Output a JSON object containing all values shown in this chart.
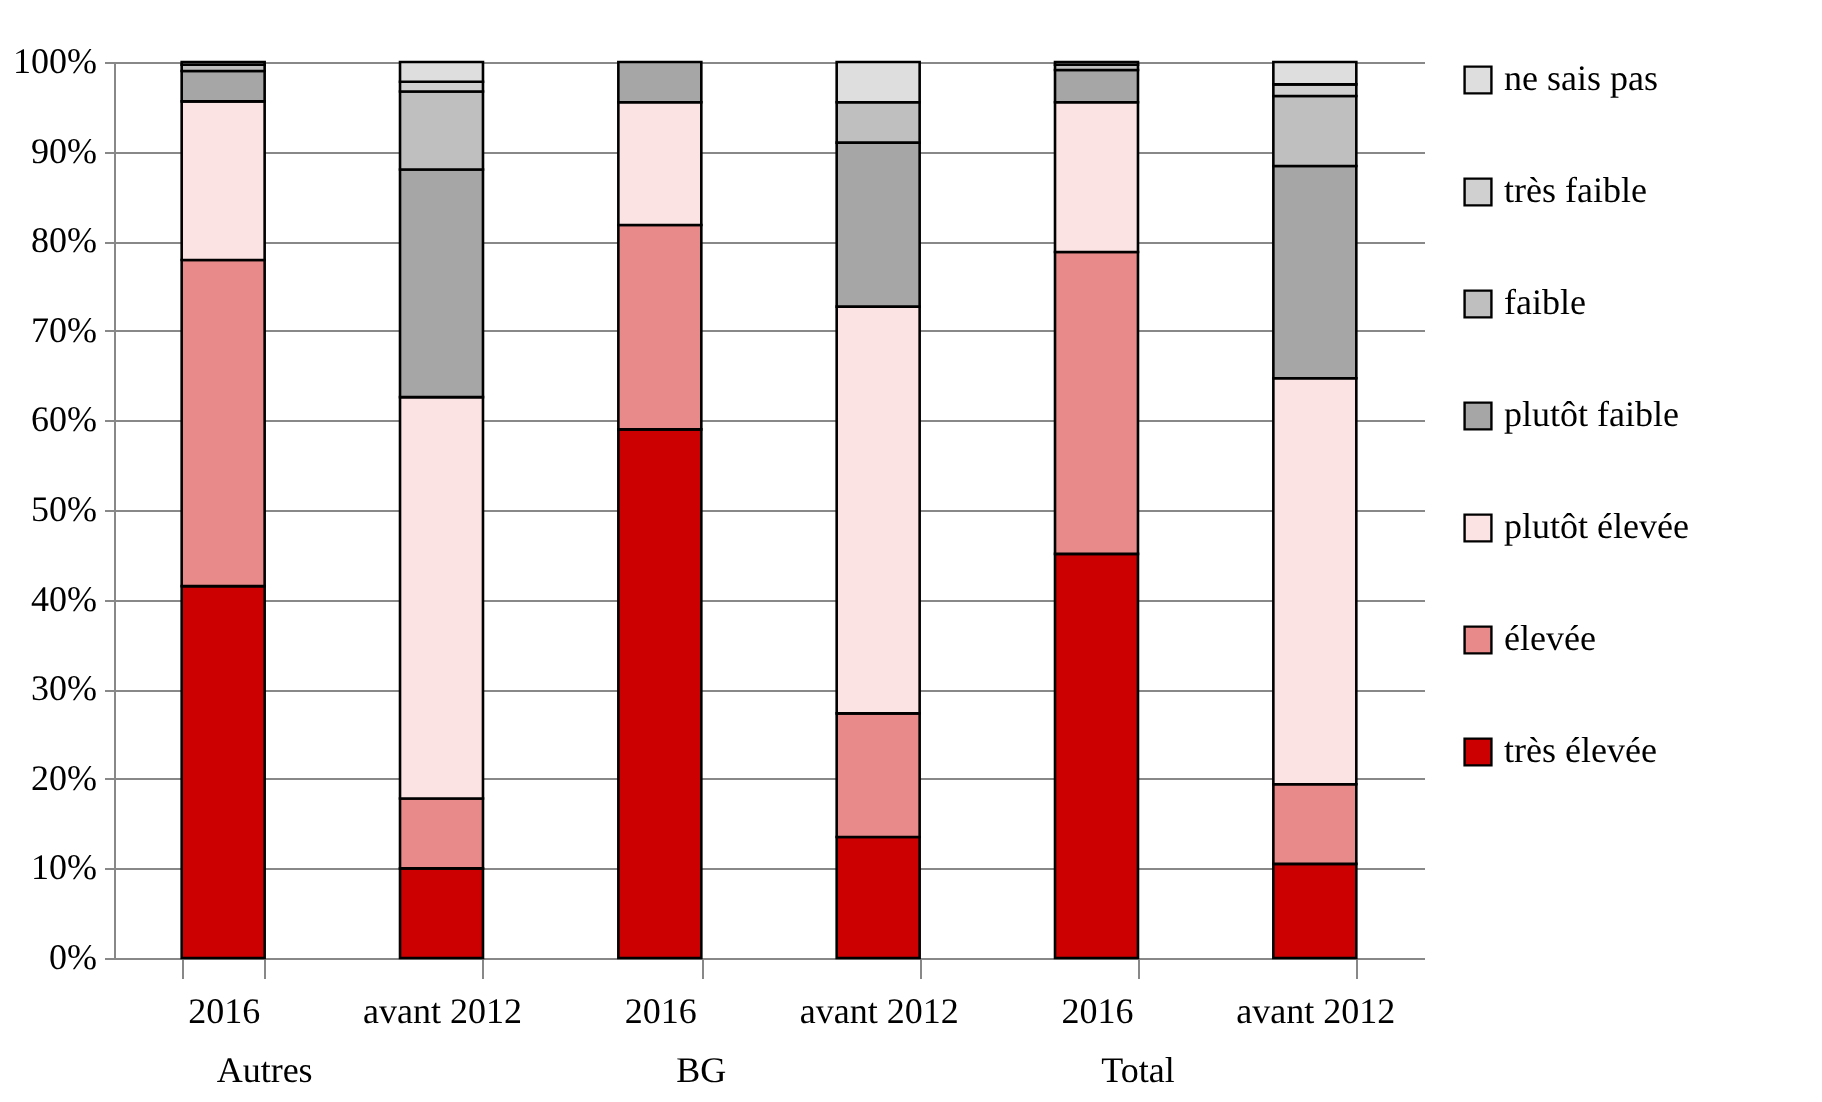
{
  "chart_data": {
    "type": "bar",
    "stacked": true,
    "categories": [
      "2016",
      "avant 2012",
      "2016",
      "avant 2012",
      "2016",
      "avant 2012"
    ],
    "annotations": [
      "Autres",
      "BG",
      "Total"
    ],
    "series": [
      {
        "name": "très élevée",
        "color": "#cc0000",
        "values": [
          41.5,
          10,
          59.0,
          13.5,
          45.1,
          10.5
        ]
      },
      {
        "name": "élevée",
        "color": "#e88a8a",
        "values": [
          36.4,
          7.8,
          22.8,
          13.8,
          33.7,
          8.9
        ]
      },
      {
        "name": "plutôt élevée",
        "color": "#fbe3e3",
        "values": [
          17.7,
          44.8,
          13.7,
          45.4,
          16.7,
          45.3
        ]
      },
      {
        "name": "plutôt faible",
        "color": "#a6a6a6",
        "values": [
          3.4,
          25.4,
          4.5,
          18.3,
          3.6,
          23.7
        ]
      },
      {
        "name": "faible",
        "color": "#bfbfbf",
        "values": [
          0.7,
          8.7,
          0,
          4.5,
          0.6,
          7.8
        ]
      },
      {
        "name": "très faible",
        "color": "#d0d0d0",
        "values": [
          0.3,
          1.1,
          0,
          0,
          0.3,
          1.3
        ]
      },
      {
        "name": "ne sais pas",
        "color": "#dedede",
        "values": [
          0,
          2.2,
          0,
          4.5,
          0,
          2.5
        ]
      }
    ],
    "ylim": [
      0,
      100
    ],
    "yticks": [
      {
        "value": 0,
        "label": "0%"
      },
      {
        "value": 10,
        "label": "10%"
      },
      {
        "value": 20,
        "label": "20%"
      },
      {
        "value": 30,
        "label": "30%"
      },
      {
        "value": 40,
        "label": "40%"
      },
      {
        "value": 50,
        "label": "50%"
      },
      {
        "value": 60,
        "label": "60%"
      },
      {
        "value": 70,
        "label": "70%"
      },
      {
        "value": 80,
        "label": "80%"
      },
      {
        "value": 90,
        "label": "90%"
      },
      {
        "value": 100,
        "label": "100%"
      }
    ],
    "grid": "y",
    "legend": "right"
  }
}
